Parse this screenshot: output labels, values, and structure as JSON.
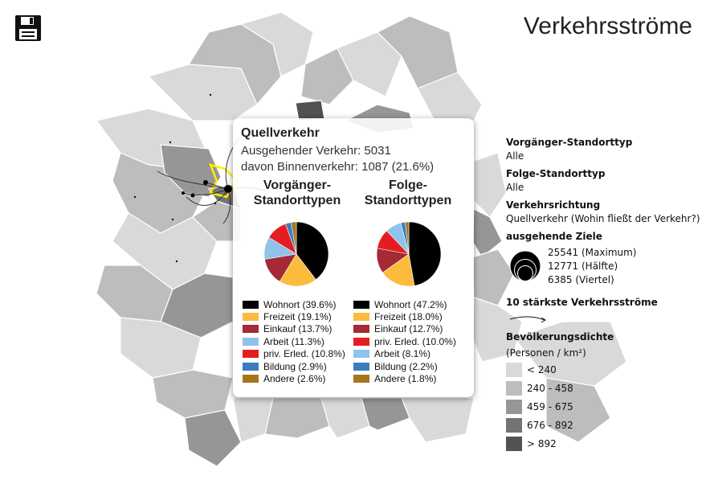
{
  "title": "Verkehrsströme",
  "legend": {
    "vorgaenger_label": "Vorgänger-Standorttyp",
    "vorgaenger_value": "Alle",
    "folge_label": "Folge-Standorttyp",
    "folge_value": "Alle",
    "richtung_label": "Verkehrsrichtung",
    "richtung_value": "Quellverkehr (Wohin fließt der Verkehr?)",
    "ziele_label": "ausgehende Ziele",
    "ziele_max": "25541 (Maximum)",
    "ziele_half": "12771 (Hälfte)",
    "ziele_quarter": "6385 (Viertel)",
    "top_label": "10 stärkste Verkehrsströme",
    "density_label": "Bevölkerungsdichte",
    "density_unit": "(Personen / km²)",
    "density_classes": [
      {
        "label": "< 240",
        "color": "#d9d9d9"
      },
      {
        "label": "240 - 458",
        "color": "#bdbdbd"
      },
      {
        "label": "459 - 675",
        "color": "#969696"
      },
      {
        "label": "676 - 892",
        "color": "#737373"
      },
      {
        "label": "> 892",
        "color": "#525252"
      }
    ]
  },
  "tooltip": {
    "title": "Quellverkehr",
    "line1": "Ausgehender Verkehr: 5031",
    "line2": "davon Binnenverkehr: 1087 (21.6%)",
    "pie1_title_a": "Vorgänger-",
    "pie1_title_b": "Standorttypen",
    "pie2_title_a": "Folge-",
    "pie2_title_b": "Standorttypen"
  },
  "chart_data": [
    {
      "type": "pie",
      "title": "Vorgänger-Standorttypen",
      "categories": [
        "Wohnort",
        "Freizeit",
        "Einkauf",
        "Arbeit",
        "priv. Erled.",
        "Bildung",
        "Andere"
      ],
      "values": [
        39.6,
        19.1,
        13.7,
        11.3,
        10.8,
        2.9,
        2.6
      ],
      "labels": [
        "Wohnort (39.6%)",
        "Freizeit (19.1%)",
        "Einkauf (13.7%)",
        "Arbeit (11.3%)",
        "priv. Erled. (10.8%)",
        "Bildung (2.9%)",
        "Andere (2.6%)"
      ],
      "colors": [
        "#000000",
        "#fbbb3d",
        "#a52a36",
        "#8fc3ea",
        "#e41e20",
        "#3a7dc1",
        "#a5761c"
      ]
    },
    {
      "type": "pie",
      "title": "Folge-Standorttypen",
      "categories": [
        "Wohnort",
        "Freizeit",
        "Einkauf",
        "priv. Erled.",
        "Arbeit",
        "Bildung",
        "Andere"
      ],
      "values": [
        47.2,
        18.0,
        12.7,
        10.0,
        8.1,
        2.2,
        1.8
      ],
      "labels": [
        "Wohnort (47.2%)",
        "Freizeit (18.0%)",
        "Einkauf (12.7%)",
        "priv. Erled. (10.0%)",
        "Arbeit (8.1%)",
        "Bildung (2.2%)",
        "Andere (1.8%)"
      ],
      "colors": [
        "#000000",
        "#fbbb3d",
        "#a52a36",
        "#e41e20",
        "#8fc3ea",
        "#3a7dc1",
        "#a5761c"
      ]
    }
  ]
}
